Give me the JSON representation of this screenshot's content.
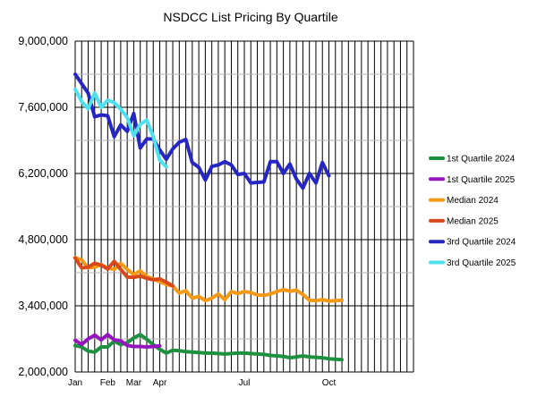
{
  "chart_data": {
    "type": "line",
    "title": "NSDCC List Pricing By Quartile",
    "xlabel": "",
    "ylabel": "",
    "ylim": [
      2000000,
      9000000
    ],
    "yticks": [
      {
        "value": 2000000,
        "label": "2,000,000"
      },
      {
        "value": 3400000,
        "label": "3,400,000"
      },
      {
        "value": 4800000,
        "label": "4,800,000"
      },
      {
        "value": 6200000,
        "label": "6,200,000"
      },
      {
        "value": 7600000,
        "label": "7,600,000"
      },
      {
        "value": 9000000,
        "label": "9,000,000"
      }
    ],
    "x_weeks": 52,
    "xticks": [
      {
        "week": 0,
        "label": "Jan"
      },
      {
        "week": 5,
        "label": "Feb"
      },
      {
        "week": 9,
        "label": "Mar"
      },
      {
        "week": 13,
        "label": "Apr"
      },
      {
        "week": 26,
        "label": "Jul"
      },
      {
        "week": 39,
        "label": "Oct"
      }
    ],
    "grid": true,
    "legend_position": "right",
    "series": [
      {
        "name": "1st Quartile 2024",
        "color": "#1e9141",
        "values": [
          2560000,
          2530000,
          2440000,
          2420000,
          2530000,
          2530000,
          2650000,
          2580000,
          2620000,
          2720000,
          2790000,
          2690000,
          2580000,
          2480000,
          2400000,
          2460000,
          2450000,
          2430000,
          2420000,
          2410000,
          2400000,
          2400000,
          2390000,
          2380000,
          2390000,
          2400000,
          2400000,
          2390000,
          2380000,
          2370000,
          2350000,
          2340000,
          2330000,
          2300000,
          2320000,
          2340000,
          2320000,
          2310000,
          2300000,
          2280000,
          2270000,
          2260000
        ]
      },
      {
        "name": "1st Quartile 2025",
        "color": "#9416bc",
        "values": [
          2670000,
          2580000,
          2700000,
          2780000,
          2680000,
          2790000,
          2680000,
          2660000,
          2560000,
          2540000,
          2540000,
          2530000,
          2540000,
          2550000
        ]
      },
      {
        "name": "Median 2024",
        "color": "#f59a16",
        "values": [
          4420000,
          4370000,
          4200000,
          4220000,
          4270000,
          4200000,
          4170000,
          4300000,
          4170000,
          4060000,
          4140000,
          4020000,
          3970000,
          3910000,
          3850000,
          3820000,
          3670000,
          3720000,
          3560000,
          3600000,
          3510000,
          3560000,
          3650000,
          3530000,
          3700000,
          3660000,
          3700000,
          3680000,
          3630000,
          3620000,
          3650000,
          3700000,
          3740000,
          3710000,
          3730000,
          3640000,
          3520000,
          3510000,
          3530000,
          3500000,
          3510000,
          3520000
        ]
      },
      {
        "name": "Median 2025",
        "color": "#d9481a",
        "values": [
          4410000,
          4200000,
          4220000,
          4300000,
          4260000,
          4180000,
          4340000,
          4170000,
          4010000,
          4000000,
          4030000,
          3980000,
          3950000,
          3970000,
          3900000,
          3820000
        ]
      },
      {
        "name": "3rd Quartile 2024",
        "color": "#2626c2",
        "values": [
          8300000,
          8100000,
          7900000,
          7400000,
          7440000,
          7420000,
          6980000,
          7230000,
          7090000,
          7470000,
          6740000,
          6930000,
          6930000,
          6700000,
          6500000,
          6720000,
          6860000,
          6920000,
          6430000,
          6330000,
          6060000,
          6350000,
          6380000,
          6450000,
          6380000,
          6180000,
          6200000,
          6000000,
          6010000,
          6020000,
          6450000,
          6450000,
          6200000,
          6400000,
          6080000,
          5890000,
          6200000,
          6000000,
          6430000,
          6150000
        ]
      },
      {
        "name": "3rd Quartile 2025",
        "color": "#4fe0f0",
        "values": [
          7980000,
          7720000,
          7570000,
          7900000,
          7600000,
          7750000,
          7700000,
          7560000,
          7380000,
          7000000,
          7240000,
          7330000,
          6980000,
          6480000,
          6340000
        ]
      }
    ]
  }
}
